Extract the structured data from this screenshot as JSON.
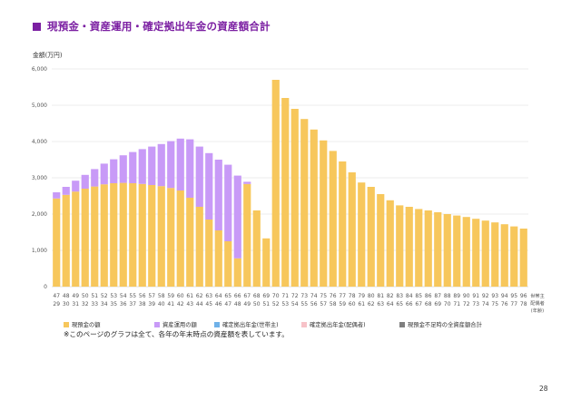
{
  "title": "現預金・資産運用・確定拠出年金の資産額合計",
  "note": "※このページのグラフは全て、各年の年末時点の資産額を表しています。",
  "page_number": "28",
  "colors": {
    "title": "#7b1fa2",
    "cash": "#f7c75c",
    "investment": "#c89af7",
    "dc_household": "#6fb1e8",
    "dc_spouse": "#f7c2c8",
    "total_when_short": "#7f7f7f",
    "grid": "#d9d9d9"
  },
  "chart_data": {
    "type": "bar",
    "stacked": true,
    "ylabel": "金額(万円)",
    "ylim": [
      0,
      6000
    ],
    "yticks": [
      "0",
      "1,000",
      "2,000",
      "3,000",
      "4,000",
      "5,000",
      "6,000"
    ],
    "grid": true,
    "legend_position": "bottom",
    "x_row_labels": [
      "世帯主",
      "配偶者",
      "(年齢)"
    ],
    "categories_household": [
      "47",
      "48",
      "49",
      "50",
      "51",
      "52",
      "53",
      "54",
      "55",
      "56",
      "57",
      "58",
      "59",
      "60",
      "61",
      "62",
      "63",
      "64",
      "65",
      "66",
      "67",
      "68",
      "69",
      "70",
      "71",
      "72",
      "73",
      "74",
      "75",
      "76",
      "77",
      "78",
      "79",
      "80",
      "81",
      "82",
      "83",
      "84",
      "85",
      "86",
      "87",
      "88",
      "89",
      "90",
      "91",
      "92",
      "93",
      "94",
      "95",
      "96"
    ],
    "categories_spouse": [
      "29",
      "30",
      "31",
      "32",
      "33",
      "34",
      "35",
      "36",
      "37",
      "38",
      "39",
      "40",
      "41",
      "42",
      "43",
      "44",
      "45",
      "46",
      "47",
      "48",
      "49",
      "50",
      "51",
      "52",
      "53",
      "54",
      "55",
      "56",
      "57",
      "58",
      "59",
      "60",
      "61",
      "62",
      "63",
      "64",
      "65",
      "66",
      "67",
      "68",
      "69",
      "70",
      "71",
      "72",
      "73",
      "74",
      "75",
      "76",
      "77",
      "78"
    ],
    "series": [
      {
        "name": "現預金の額",
        "color_key": "cash",
        "values": [
          2430,
          2530,
          2620,
          2700,
          2760,
          2820,
          2850,
          2860,
          2850,
          2830,
          2800,
          2770,
          2720,
          2650,
          2450,
          2200,
          1850,
          1550,
          1250,
          780,
          2830,
          2100,
          1330,
          5700,
          5200,
          4900,
          4620,
          4330,
          4030,
          3740,
          3450,
          3150,
          2870,
          2750,
          2550,
          2380,
          2240,
          2200,
          2140,
          2100,
          2050,
          2000,
          1960,
          1920,
          1870,
          1820,
          1770,
          1720,
          1660,
          1600
        ]
      },
      {
        "name": "資産運用の額",
        "color_key": "investment",
        "values": [
          170,
          220,
          300,
          380,
          480,
          570,
          660,
          760,
          860,
          960,
          1060,
          1160,
          1290,
          1430,
          1610,
          1660,
          1830,
          1950,
          2110,
          2280,
          60,
          0,
          0,
          0,
          0,
          0,
          0,
          0,
          0,
          0,
          0,
          0,
          0,
          0,
          0,
          0,
          0,
          0,
          0,
          0,
          0,
          0,
          0,
          0,
          0,
          0,
          0,
          0,
          0,
          0
        ]
      },
      {
        "name": "確定拠出年金(世帯主)",
        "color_key": "dc_household",
        "values": [
          0,
          0,
          0,
          0,
          0,
          0,
          0,
          0,
          0,
          0,
          0,
          0,
          0,
          0,
          0,
          0,
          0,
          0,
          0,
          0,
          0,
          0,
          0,
          0,
          0,
          0,
          0,
          0,
          0,
          0,
          0,
          0,
          0,
          0,
          0,
          0,
          0,
          0,
          0,
          0,
          0,
          0,
          0,
          0,
          0,
          0,
          0,
          0,
          0,
          0
        ]
      },
      {
        "name": "確定拠出年金(配偶者)",
        "color_key": "dc_spouse",
        "values": [
          0,
          0,
          0,
          0,
          0,
          0,
          0,
          0,
          0,
          0,
          0,
          0,
          0,
          0,
          0,
          0,
          0,
          0,
          0,
          0,
          0,
          0,
          0,
          0,
          0,
          0,
          0,
          0,
          0,
          0,
          0,
          0,
          0,
          0,
          0,
          0,
          0,
          0,
          0,
          0,
          0,
          0,
          0,
          0,
          0,
          0,
          0,
          0,
          0,
          0
        ]
      },
      {
        "name": "現預金不足時の全資産額合計",
        "color_key": "total_when_short",
        "values": [
          0,
          0,
          0,
          0,
          0,
          0,
          0,
          0,
          0,
          0,
          0,
          0,
          0,
          0,
          0,
          0,
          0,
          0,
          0,
          0,
          0,
          0,
          0,
          0,
          0,
          0,
          0,
          0,
          0,
          0,
          0,
          0,
          0,
          0,
          0,
          0,
          0,
          0,
          0,
          0,
          0,
          0,
          0,
          0,
          0,
          0,
          0,
          0,
          0,
          0
        ]
      }
    ]
  }
}
